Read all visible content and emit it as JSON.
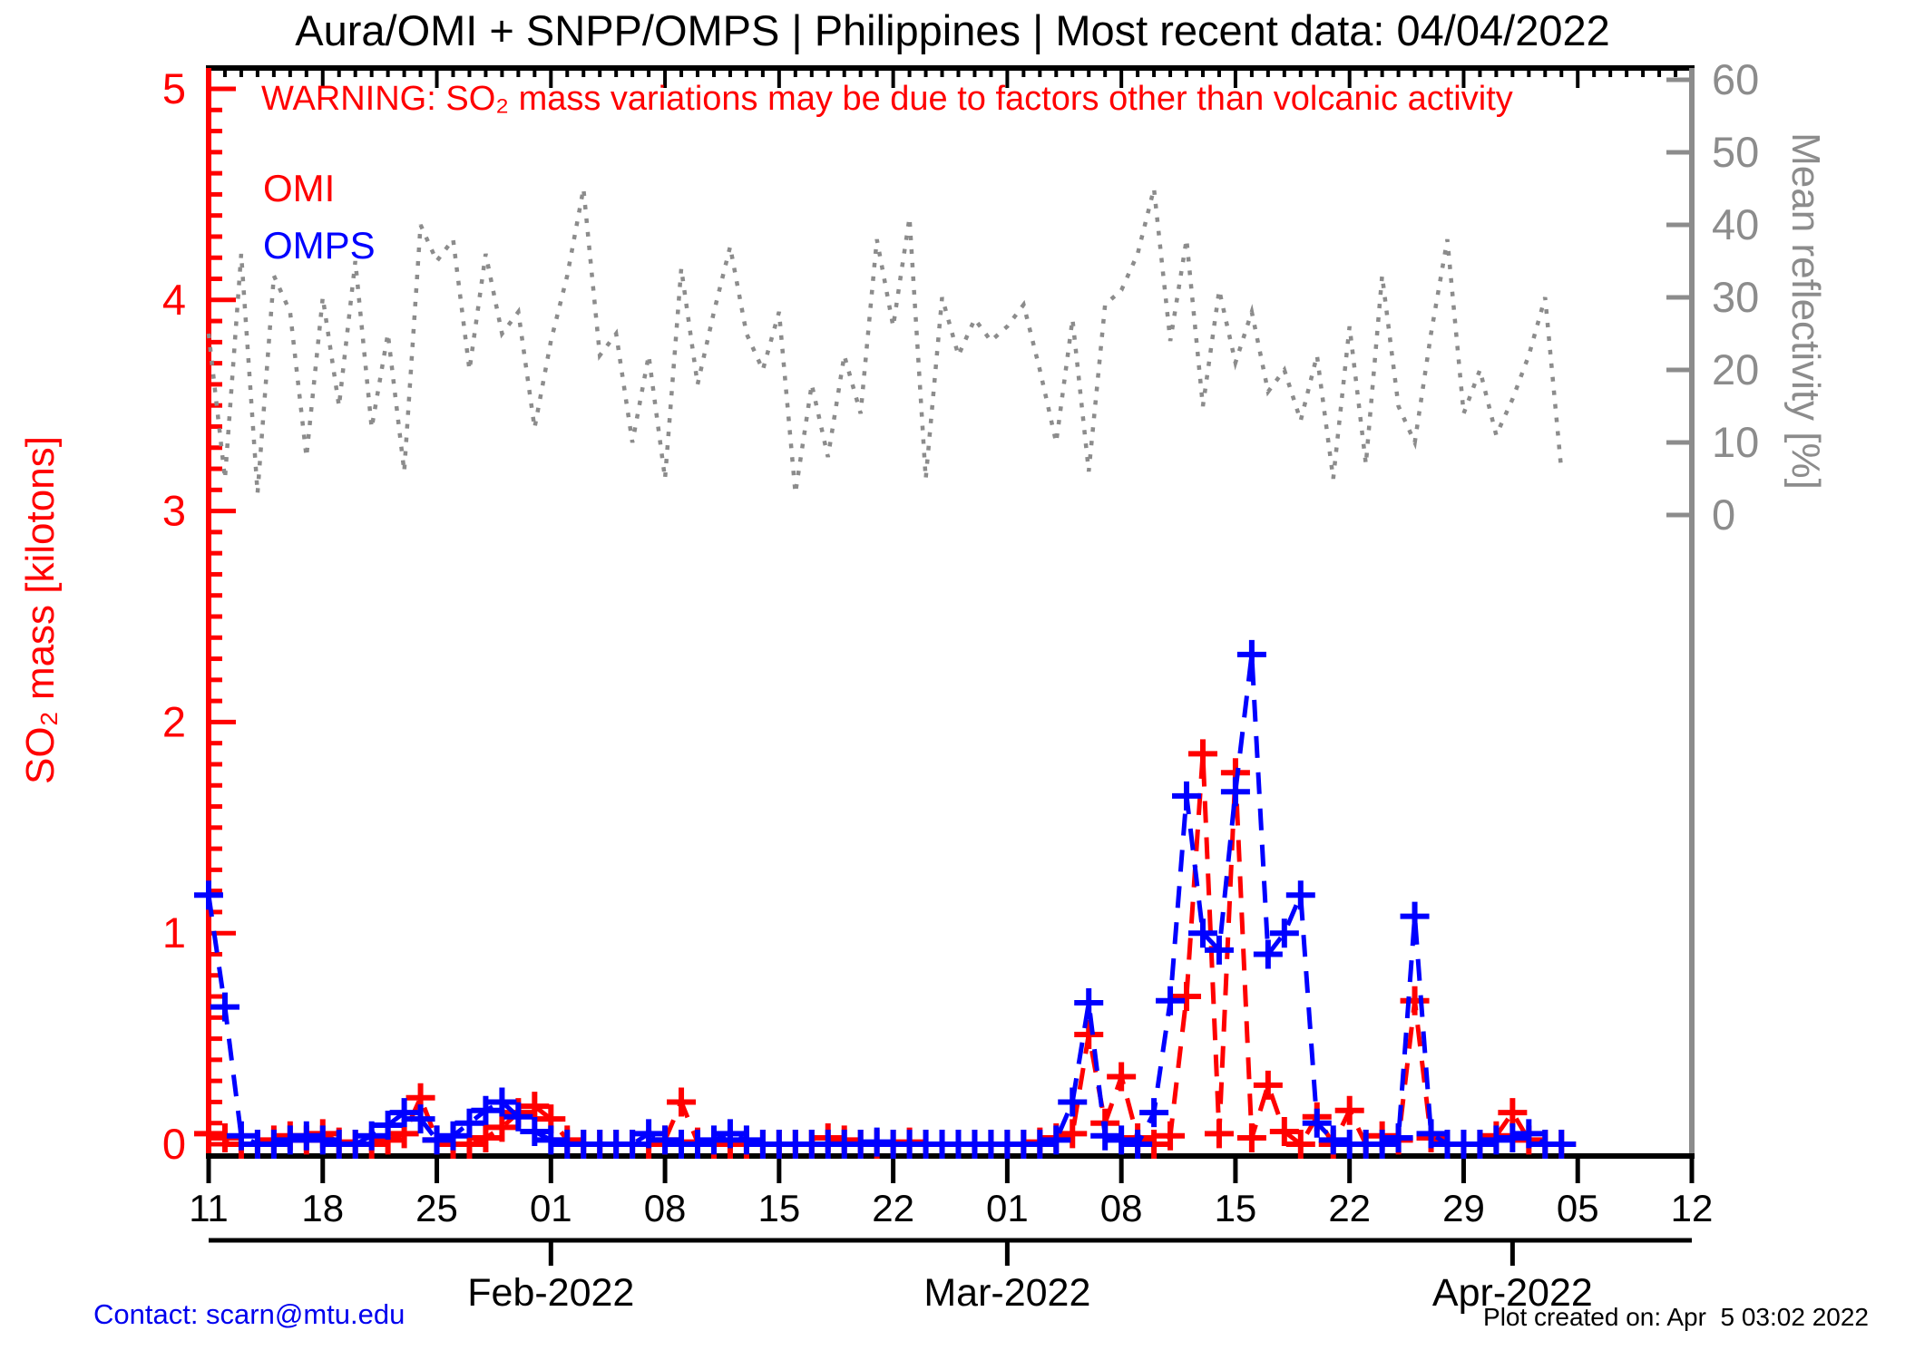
{
  "header": {
    "title": "Aura/OMI + SNPP/OMPS | Philippines | Most recent data: 04/04/2022",
    "warning": "WARNING: SO₂ mass variations may be due to factors other than volcanic activity"
  },
  "legend": {
    "omi": "OMI",
    "omps": "OMPS"
  },
  "axes": {
    "left": {
      "label": "SO₂ mass [kilotons]",
      "ticks": [
        "0",
        "1",
        "2",
        "3",
        "4",
        "5"
      ],
      "color": "#ff0000"
    },
    "right": {
      "label": "Mean reflectivity [%]",
      "ticks": [
        "0",
        "10",
        "20",
        "30",
        "40",
        "50",
        "60"
      ],
      "color": "#8c8c8c"
    },
    "bottom": {
      "week_labels": [
        "11",
        "18",
        "25",
        "01",
        "08",
        "15",
        "22",
        "01",
        "08",
        "15",
        "22",
        "29",
        "05",
        "12"
      ],
      "week_days": [
        0,
        7,
        14,
        21,
        28,
        35,
        42,
        49,
        56,
        63,
        70,
        77,
        84,
        91
      ],
      "months": [
        {
          "label": "Feb-2022",
          "day": 21
        },
        {
          "label": "Mar-2022",
          "day": 49
        },
        {
          "label": "Apr-2022",
          "day": 80
        }
      ]
    }
  },
  "footer": {
    "contact": "Contact: scarn@mtu.edu",
    "created": "Plot created on: Apr  5 03:02 2022"
  },
  "chart_data": {
    "type": "line",
    "title": "Aura/OMI + SNPP/OMPS | Philippines | Most recent data: 04/04/2022",
    "x_unit": "days since 2022-01-11 (daily samples, Jan 11 - Apr 4 2022)",
    "x_axis_span_days": 91,
    "left_ylim": [
      0,
      5
    ],
    "right_ylim": [
      0,
      60
    ],
    "legend_position": "top-left",
    "grid": false,
    "series": [
      {
        "name": "OMI SO2 mass [kilotons]",
        "color": "#ff0000",
        "axis": "left",
        "style": "dashed-plus",
        "values": [
          0.05,
          0.03,
          0.0,
          0.0,
          0.02,
          0.04,
          0.02,
          0.05,
          0.01,
          0.0,
          0.0,
          0.02,
          0.05,
          0.22,
          0.02,
          0.0,
          0.0,
          0.03,
          0.08,
          0.15,
          0.18,
          0.12,
          0.02,
          0.0,
          0.0,
          0.0,
          0.0,
          0.0,
          0.02,
          0.2,
          0.01,
          0.0,
          0.0,
          0.0,
          0.0,
          0.0,
          0.0,
          0.0,
          0.03,
          0.02,
          0.0,
          0.0,
          0.0,
          0.01,
          0.0,
          0.0,
          0.0,
          0.0,
          0.0,
          0.0,
          0.0,
          0.01,
          0.03,
          0.05,
          0.52,
          0.1,
          0.32,
          0.03,
          0.0,
          0.04,
          0.7,
          1.85,
          0.05,
          1.76,
          0.03,
          0.28,
          0.06,
          0.0,
          0.13,
          0.0,
          0.16,
          0.0,
          0.04,
          0.02,
          0.68,
          0.03,
          0.0,
          0.0,
          0.0,
          0.04,
          0.15,
          0.02,
          0.0,
          0.0
        ]
      },
      {
        "name": "OMPS SO2 mass [kilotons]",
        "color": "#0000ff",
        "axis": "left",
        "style": "dashed-plus",
        "values": [
          1.18,
          0.65,
          0.04,
          0.0,
          0.0,
          0.02,
          0.04,
          0.02,
          0.0,
          0.0,
          0.04,
          0.09,
          0.15,
          0.12,
          0.02,
          0.04,
          0.1,
          0.16,
          0.2,
          0.13,
          0.06,
          0.02,
          0.0,
          0.0,
          0.0,
          0.0,
          0.0,
          0.05,
          0.02,
          0.0,
          0.0,
          0.02,
          0.05,
          0.02,
          0.0,
          0.0,
          0.0,
          0.0,
          0.0,
          0.0,
          0.0,
          0.01,
          0.0,
          0.0,
          0.0,
          0.0,
          0.0,
          0.0,
          0.0,
          0.0,
          0.0,
          0.0,
          0.02,
          0.2,
          0.67,
          0.04,
          0.02,
          0.0,
          0.15,
          0.68,
          1.65,
          1.0,
          0.92,
          1.67,
          2.32,
          0.9,
          1.0,
          1.18,
          0.1,
          0.02,
          0.0,
          0.0,
          0.0,
          0.03,
          1.08,
          0.05,
          0.0,
          0.0,
          0.0,
          0.02,
          0.03,
          0.05,
          0.0,
          0.0
        ]
      },
      {
        "name": "Mean reflectivity [%]",
        "color": "#8c8c8c",
        "axis": "right",
        "style": "dotted",
        "values": [
          25,
          5,
          36,
          3,
          33,
          28,
          8,
          30,
          15,
          35,
          12,
          25,
          6,
          40,
          35,
          38,
          20,
          36,
          25,
          28,
          12,
          24,
          33,
          45,
          22,
          25,
          10,
          22,
          5,
          34,
          18,
          28,
          37,
          25,
          20,
          28,
          3,
          18,
          8,
          22,
          14,
          38,
          26,
          41,
          5,
          30,
          22,
          27,
          24,
          26,
          29,
          20,
          10,
          27,
          6,
          29,
          31,
          36,
          45,
          24,
          38,
          15,
          31,
          21,
          28,
          17,
          20,
          13,
          22,
          5,
          26,
          7,
          33,
          15,
          10,
          25,
          38,
          14,
          20,
          11,
          16,
          22,
          30,
          6
        ]
      }
    ]
  }
}
